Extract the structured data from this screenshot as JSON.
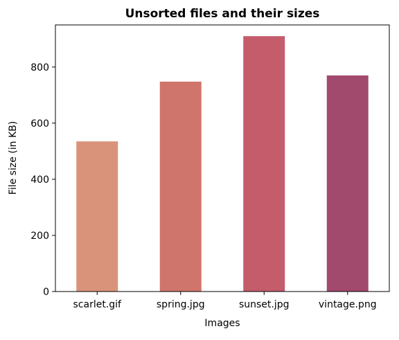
{
  "chart_data": {
    "type": "bar",
    "title": "Unsorted files and their sizes",
    "xlabel": "Images",
    "ylabel": "File size (in KB)",
    "categories": [
      "scarlet.gif",
      "spring.jpg",
      "sunset.jpg",
      "vintage.png"
    ],
    "values": [
      535,
      748,
      910,
      770
    ],
    "ylim": [
      0,
      950
    ],
    "yticks": [
      0,
      200,
      400,
      600,
      800
    ],
    "colors": [
      "#d9937a",
      "#d0756c",
      "#c45c6b",
      "#a2496e"
    ],
    "grid": false,
    "legend": "none"
  }
}
